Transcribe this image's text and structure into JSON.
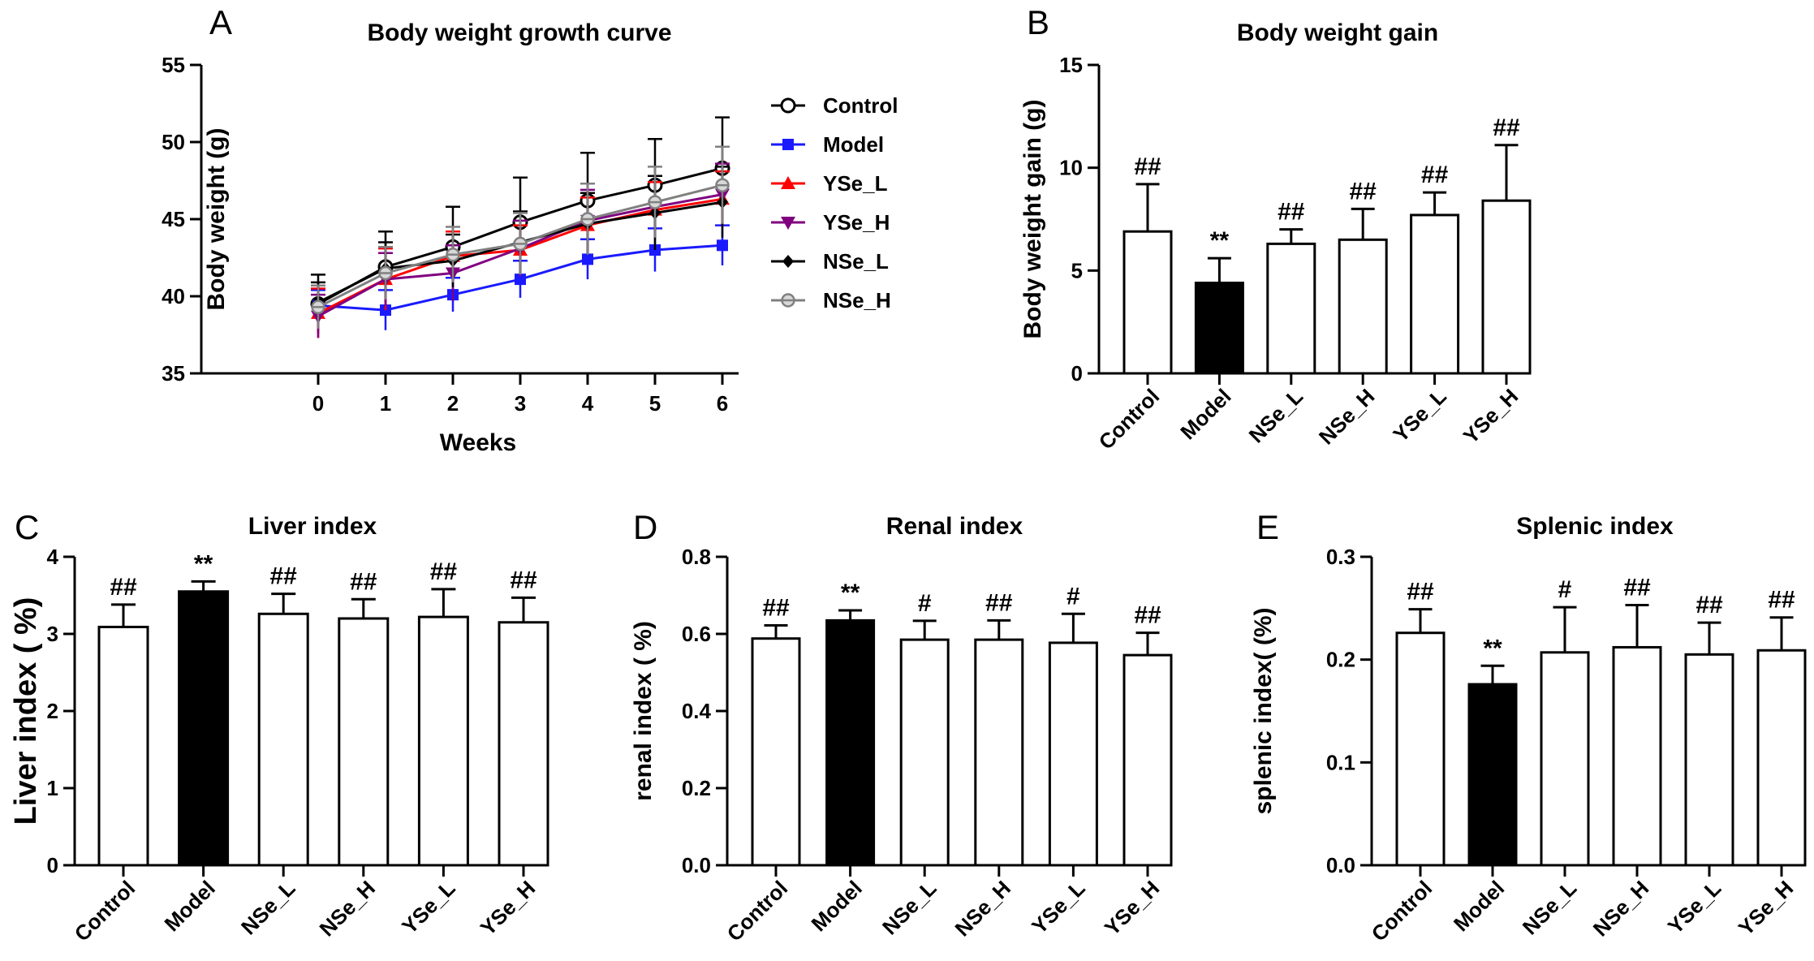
{
  "chart_data": [
    {
      "id": "A",
      "type": "line",
      "panel_label": "A",
      "title": "Body weight growth curve",
      "xlabel": "Weeks",
      "ylabel": "Body weight (g)",
      "x": [
        0,
        1,
        2,
        3,
        4,
        5,
        6
      ],
      "xticks": [
        "0",
        "1",
        "2",
        "3",
        "4",
        "5",
        "6"
      ],
      "ylim": [
        35,
        55
      ],
      "yticks": [
        "35",
        "40",
        "45",
        "50",
        "55"
      ],
      "legend_position": "right",
      "series": [
        {
          "name": "Control",
          "marker": "open-circle",
          "color": "#000000",
          "values": [
            39.5,
            41.9,
            43.2,
            44.8,
            46.2,
            47.2,
            48.3
          ],
          "errors": [
            1.9,
            2.3,
            2.6,
            2.9,
            3.1,
            3.0,
            3.3
          ]
        },
        {
          "name": "Model",
          "marker": "square",
          "color": "#1a1aff",
          "values": [
            39.4,
            39.1,
            40.1,
            41.1,
            42.4,
            43.0,
            43.3
          ],
          "errors": [
            1.0,
            1.3,
            1.1,
            1.2,
            1.3,
            1.4,
            1.3
          ]
        },
        {
          "name": "YSe_L",
          "marker": "triangle-up",
          "color": "#ff0000",
          "values": [
            38.9,
            41.1,
            42.6,
            43.0,
            44.6,
            45.6,
            46.3
          ],
          "errors": [
            1.6,
            2.0,
            1.6,
            1.6,
            1.8,
            1.8,
            1.8
          ]
        },
        {
          "name": "YSe_H",
          "marker": "triangle-down",
          "color": "#800080",
          "values": [
            38.7,
            41.1,
            41.5,
            43.1,
            44.9,
            45.8,
            46.6
          ],
          "errors": [
            1.4,
            1.7,
            1.8,
            1.8,
            2.0,
            2.0,
            2.0
          ]
        },
        {
          "name": "NSe_L",
          "marker": "diamond",
          "color": "#000000",
          "values": [
            39.6,
            41.8,
            42.3,
            43.5,
            44.7,
            45.4,
            46.1
          ],
          "errors": [
            1.3,
            1.7,
            1.7,
            2.0,
            2.0,
            2.4,
            2.3
          ]
        },
        {
          "name": "NSe_H",
          "marker": "half-circle",
          "color": "#808080",
          "values": [
            39.3,
            41.5,
            42.7,
            43.4,
            45.0,
            46.1,
            47.2
          ],
          "errors": [
            1.4,
            1.7,
            1.8,
            2.0,
            2.3,
            2.3,
            2.5
          ]
        }
      ]
    },
    {
      "id": "B",
      "type": "bar",
      "panel_label": "B",
      "title": "Body weight gain",
      "ylabel": "Body weight gain (g)",
      "categories": [
        "Control",
        "Model",
        "NSe_L",
        "NSe_H",
        "YSe_L",
        "YSe_H"
      ],
      "values": [
        6.9,
        4.4,
        6.3,
        6.5,
        7.7,
        8.4
      ],
      "errors": [
        2.3,
        1.2,
        0.7,
        1.5,
        1.1,
        2.7
      ],
      "filled": [
        false,
        true,
        false,
        false,
        false,
        false
      ],
      "annotations": [
        "##",
        "**",
        "##",
        "##",
        "##",
        "##"
      ],
      "ylim": [
        0,
        15
      ],
      "yticks": [
        "0",
        "5",
        "10",
        "15"
      ]
    },
    {
      "id": "C",
      "type": "bar",
      "panel_label": "C",
      "title": "Liver index",
      "ylabel": "Liver index ( %)",
      "categories": [
        "Control",
        "Model",
        "NSe_L",
        "NSe_H",
        "YSe_L",
        "YSe_H"
      ],
      "values": [
        3.09,
        3.55,
        3.26,
        3.2,
        3.22,
        3.15
      ],
      "errors": [
        0.29,
        0.13,
        0.26,
        0.25,
        0.36,
        0.32
      ],
      "filled": [
        false,
        true,
        false,
        false,
        false,
        false
      ],
      "annotations": [
        "##",
        "**",
        "##",
        "##",
        "##",
        "##"
      ],
      "ylim": [
        0,
        4
      ],
      "yticks": [
        "0",
        "1",
        "2",
        "3",
        "4"
      ]
    },
    {
      "id": "D",
      "type": "bar",
      "panel_label": "D",
      "title": "Renal index",
      "ylabel": "renal index ( %)",
      "categories": [
        "Control",
        "Model",
        "NSe_L",
        "NSe_H",
        "YSe_L",
        "YSe_H"
      ],
      "values": [
        0.588,
        0.635,
        0.585,
        0.585,
        0.577,
        0.545
      ],
      "errors": [
        0.034,
        0.026,
        0.049,
        0.05,
        0.075,
        0.058
      ],
      "filled": [
        false,
        true,
        false,
        false,
        false,
        false
      ],
      "annotations": [
        "##",
        "**",
        "#",
        "##",
        "#",
        "##"
      ],
      "ylim": [
        0,
        0.8
      ],
      "yticks": [
        "0.0",
        "0.2",
        "0.4",
        "0.6",
        "0.8"
      ]
    },
    {
      "id": "E",
      "type": "bar",
      "panel_label": "E",
      "title": "Splenic index",
      "ylabel": "splenic index( (%)",
      "categories": [
        "Control",
        "Model",
        "NSe_L",
        "NSe_H",
        "YSe_L",
        "YSe_H"
      ],
      "values": [
        0.226,
        0.176,
        0.207,
        0.212,
        0.205,
        0.209
      ],
      "errors": [
        0.023,
        0.018,
        0.044,
        0.041,
        0.031,
        0.032
      ],
      "filled": [
        false,
        true,
        false,
        false,
        false,
        false
      ],
      "annotations": [
        "##",
        "**",
        "#",
        "##",
        "##",
        "##"
      ],
      "ylim": [
        0,
        0.3
      ],
      "yticks": [
        "0.0",
        "0.1",
        "0.2",
        "0.3"
      ]
    }
  ]
}
